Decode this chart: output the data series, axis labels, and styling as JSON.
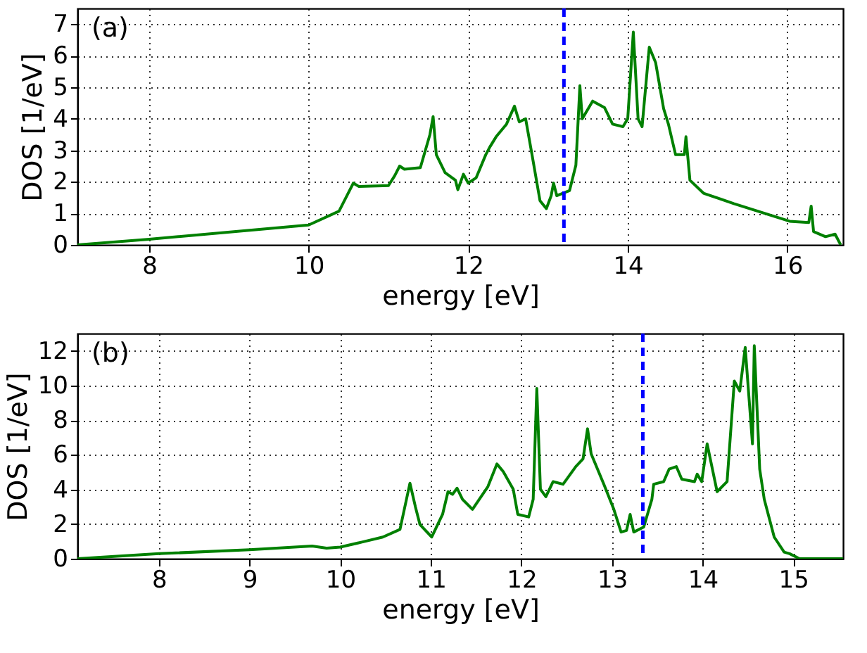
{
  "chart_data": [
    {
      "type": "line",
      "xlabel": "energy [eV]",
      "ylabel": "DOS [1/eV]",
      "annotations": [
        "(a)"
      ],
      "xlim": [
        7.1,
        16.7
      ],
      "ylim": [
        0,
        7.5
      ],
      "xticks": [
        8,
        10,
        12,
        14,
        16
      ],
      "yticks": [
        0,
        1,
        2,
        3,
        4,
        5,
        6,
        7
      ],
      "grid": true,
      "legend": false,
      "marker": "none",
      "line_style": "solid",
      "ref_lines": [
        {
          "axis": "x",
          "value": 13.2,
          "label": null,
          "color": "#0000ff",
          "line_style": "dashed"
        }
      ],
      "series": [
        {
          "color": "#008000",
          "x": [
            7.1,
            8.0,
            10.0,
            10.38,
            10.56,
            10.63,
            11.0,
            11.08,
            11.14,
            11.2,
            11.4,
            11.52,
            11.56,
            11.6,
            11.71,
            11.84,
            11.87,
            11.94,
            12.0,
            12.1,
            12.22,
            12.27,
            12.35,
            12.48,
            12.58,
            12.64,
            12.72,
            12.8,
            12.9,
            12.98,
            13.04,
            13.07,
            13.11,
            13.27,
            13.35,
            13.4,
            13.43,
            13.56,
            13.71,
            13.81,
            13.94,
            14.0,
            14.07,
            14.13,
            14.18,
            14.27,
            14.35,
            14.45,
            14.51,
            14.6,
            14.71,
            14.73,
            14.78,
            14.95,
            15.33,
            16.03,
            16.27,
            16.3,
            16.33,
            16.48,
            16.6,
            16.67
          ],
          "values": [
            0,
            0.18,
            0.63,
            1.07,
            1.96,
            1.85,
            1.88,
            2.2,
            2.5,
            2.4,
            2.45,
            3.5,
            4.07,
            2.86,
            2.29,
            2.05,
            1.75,
            2.24,
            1.96,
            2.13,
            2.86,
            3.1,
            3.43,
            3.83,
            4.4,
            3.9,
            4.0,
            2.86,
            1.4,
            1.15,
            1.56,
            1.96,
            1.56,
            1.72,
            2.53,
            5.05,
            4.0,
            4.56,
            4.35,
            3.83,
            3.75,
            4.0,
            6.75,
            4.0,
            3.75,
            6.27,
            5.78,
            4.32,
            3.83,
            2.86,
            2.86,
            3.43,
            2.05,
            1.64,
            1.31,
            0.75,
            0.71,
            1.23,
            0.42,
            0.26,
            0.34,
            0
          ]
        }
      ]
    },
    {
      "type": "line",
      "xlabel": "energy [eV]",
      "ylabel": "DOS [1/eV]",
      "annotations": [
        "(b)"
      ],
      "xlim": [
        7.1,
        15.55
      ],
      "ylim": [
        0,
        13
      ],
      "xticks": [
        8,
        9,
        10,
        11,
        12,
        13,
        14,
        15
      ],
      "yticks": [
        0,
        2,
        4,
        6,
        8,
        10,
        12
      ],
      "grid": true,
      "legend": false,
      "marker": "none",
      "line_style": "solid",
      "ref_lines": [
        {
          "axis": "x",
          "value": 13.34,
          "label": null,
          "color": "#0000ff",
          "line_style": "dashed"
        }
      ],
      "series": [
        {
          "color": "#008000",
          "x": [
            7.1,
            8.0,
            9.0,
            9.69,
            9.85,
            10.0,
            10.24,
            10.47,
            10.66,
            10.77,
            10.83,
            10.88,
            11.01,
            11.13,
            11.19,
            11.24,
            11.29,
            11.35,
            11.46,
            11.63,
            11.73,
            11.8,
            11.91,
            11.96,
            12.08,
            12.13,
            12.17,
            12.21,
            12.27,
            12.35,
            12.46,
            12.6,
            12.68,
            12.73,
            12.77,
            12.91,
            13.02,
            13.1,
            13.16,
            13.2,
            13.24,
            13.35,
            13.44,
            13.46,
            13.57,
            13.63,
            13.71,
            13.77,
            13.91,
            13.94,
            13.99,
            14.05,
            14.16,
            14.27,
            14.35,
            14.41,
            14.47,
            14.55,
            14.57,
            14.63,
            14.68,
            14.79,
            14.9,
            14.96,
            15.07,
            15.55
          ],
          "values": [
            0,
            0.29,
            0.52,
            0.73,
            0.61,
            0.67,
            0.96,
            1.25,
            1.69,
            4.36,
            3.0,
            1.98,
            1.25,
            2.56,
            3.87,
            3.72,
            4.07,
            3.43,
            2.85,
            4.16,
            5.47,
            5.03,
            4.01,
            2.56,
            2.41,
            3.43,
            9.83,
            4.01,
            3.58,
            4.45,
            4.3,
            5.32,
            5.76,
            7.5,
            6.05,
            4.3,
            2.85,
            1.54,
            1.63,
            2.56,
            1.54,
            1.83,
            3.43,
            4.3,
            4.45,
            5.17,
            5.32,
            4.59,
            4.45,
            4.88,
            4.45,
            6.63,
            3.87,
            4.45,
            10.26,
            9.68,
            12.2,
            6.63,
            12.3,
            5.17,
            3.43,
            1.25,
            0.38,
            0.29,
            0,
            0
          ]
        }
      ]
    }
  ]
}
